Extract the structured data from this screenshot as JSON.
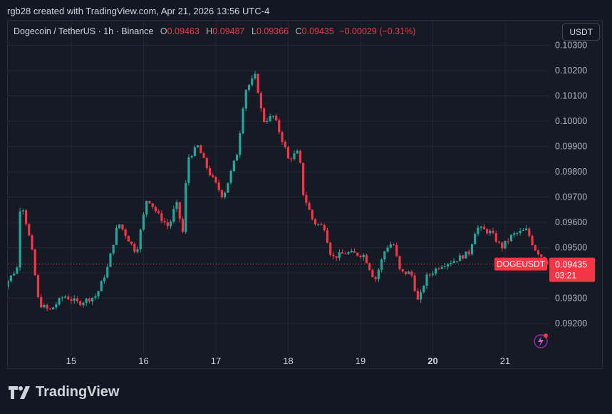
{
  "caption": "rgb28 created with TradingView.com, Apr 21, 2026 13:56 UTC-4",
  "legend": {
    "symbol": "Dogecoin / TetherUS · 1h · Binance",
    "o_label": "O",
    "o_value": "0.09463",
    "h_label": "H",
    "h_value": "0.09487",
    "l_label": "L",
    "l_value": "0.09366",
    "c_label": "C",
    "c_value": "0.09435",
    "change": "−0.00029 (−0.31%)"
  },
  "currency_button": "USDT",
  "brand": "TradingView",
  "colors": {
    "up": "#26a69a",
    "down": "#f23645",
    "background": "#161a25",
    "grid": "#232733",
    "axis_text": "#b2b5be"
  },
  "chart_data": {
    "type": "candlestick",
    "symbol": "DOGEUSDT",
    "interval": "1h",
    "y_ticks": [
      "0.09200",
      "0.09300",
      "0.09400",
      "0.09500",
      "0.09600",
      "0.09700",
      "0.09800",
      "0.09900",
      "0.10000",
      "0.10100",
      "0.10200",
      "0.10300"
    ],
    "x_ticks": [
      "15",
      "16",
      "17",
      "18",
      "19",
      "20",
      "21"
    ],
    "ylim": [
      0.0912,
      0.103
    ],
    "last_price": "0.09435",
    "price_label": "DOGEUSDT",
    "countdown": "03:21",
    "grid": true,
    "anchors": [
      {
        "x": 14.0,
        "p": 0.0932
      },
      {
        "x": 14.25,
        "p": 0.0942
      },
      {
        "x": 14.3,
        "p": 0.097
      },
      {
        "x": 14.45,
        "p": 0.095
      },
      {
        "x": 14.55,
        "p": 0.0928
      },
      {
        "x": 14.7,
        "p": 0.0925
      },
      {
        "x": 14.9,
        "p": 0.0931
      },
      {
        "x": 15.1,
        "p": 0.0928
      },
      {
        "x": 15.35,
        "p": 0.0931
      },
      {
        "x": 15.5,
        "p": 0.0942
      },
      {
        "x": 15.65,
        "p": 0.096
      },
      {
        "x": 15.9,
        "p": 0.0948
      },
      {
        "x": 16.05,
        "p": 0.097
      },
      {
        "x": 16.2,
        "p": 0.0963
      },
      {
        "x": 16.35,
        "p": 0.0958
      },
      {
        "x": 16.45,
        "p": 0.0968
      },
      {
        "x": 16.55,
        "p": 0.0955
      },
      {
        "x": 16.6,
        "p": 0.0985
      },
      {
        "x": 16.75,
        "p": 0.099
      },
      {
        "x": 16.9,
        "p": 0.098
      },
      {
        "x": 17.1,
        "p": 0.097
      },
      {
        "x": 17.3,
        "p": 0.0988
      },
      {
        "x": 17.4,
        "p": 0.1012
      },
      {
        "x": 17.55,
        "p": 0.1018
      },
      {
        "x": 17.65,
        "p": 0.1
      },
      {
        "x": 17.8,
        "p": 0.1002
      },
      {
        "x": 17.95,
        "p": 0.099
      },
      {
        "x": 18.0,
        "p": 0.0985
      },
      {
        "x": 18.15,
        "p": 0.0988
      },
      {
        "x": 18.2,
        "p": 0.0972
      },
      {
        "x": 18.35,
        "p": 0.096
      },
      {
        "x": 18.5,
        "p": 0.0958
      },
      {
        "x": 18.6,
        "p": 0.0946
      },
      {
        "x": 18.8,
        "p": 0.0948
      },
      {
        "x": 19.05,
        "p": 0.0947
      },
      {
        "x": 19.2,
        "p": 0.0937
      },
      {
        "x": 19.35,
        "p": 0.095
      },
      {
        "x": 19.45,
        "p": 0.0952
      },
      {
        "x": 19.55,
        "p": 0.094
      },
      {
        "x": 19.7,
        "p": 0.094
      },
      {
        "x": 19.8,
        "p": 0.0928
      },
      {
        "x": 19.9,
        "p": 0.0938
      },
      {
        "x": 20.1,
        "p": 0.0943
      },
      {
        "x": 20.3,
        "p": 0.0945
      },
      {
        "x": 20.5,
        "p": 0.0948
      },
      {
        "x": 20.6,
        "p": 0.0958
      },
      {
        "x": 20.8,
        "p": 0.0956
      },
      {
        "x": 20.95,
        "p": 0.095
      },
      {
        "x": 21.1,
        "p": 0.0955
      },
      {
        "x": 21.3,
        "p": 0.0957
      },
      {
        "x": 21.4,
        "p": 0.095
      },
      {
        "x": 21.55,
        "p": 0.0945
      },
      {
        "x": 21.6,
        "p": 0.09435
      }
    ]
  }
}
